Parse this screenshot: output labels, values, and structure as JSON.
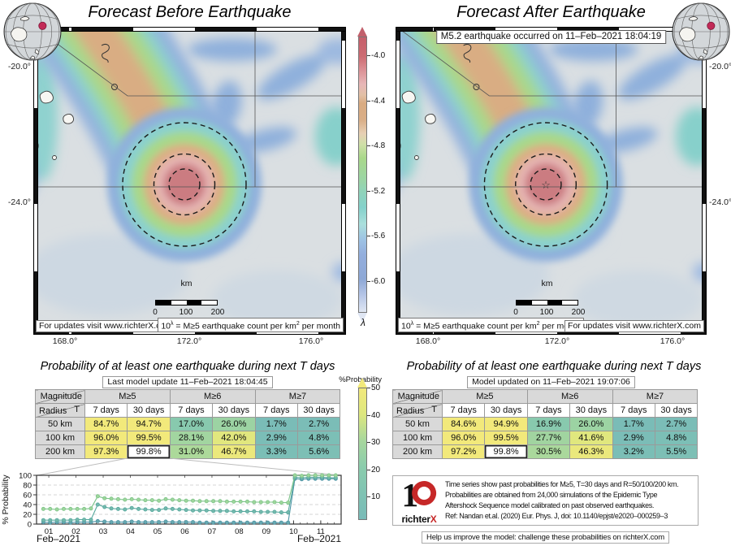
{
  "maps": {
    "left": {
      "title": "Forecast Before Earthquake",
      "lat_labels": [
        "-20.0°",
        "-24.0°"
      ],
      "lon_labels": [
        "168.0°",
        "172.0°",
        "176.0°"
      ]
    },
    "right": {
      "title": "Forecast After Earthquake",
      "banner": "M5.2 earthquake occurred on 11–Feb–2021 18:04:19",
      "lat_labels": [
        "-20.0°",
        "-24.0°"
      ],
      "lon_labels": [
        "168.0°",
        "172.0°",
        "176.0°"
      ],
      "epicenter_star": "☆"
    }
  },
  "shared": {
    "updates_box": "For updates visit www.richterX.com",
    "count_box": {
      "prefix": "10",
      "sup1": "λ",
      "mid": " = M≥5 earthquake count per km",
      "sup2": "2",
      "suffix": " per month"
    },
    "scalebar": {
      "label": "km",
      "ticks": [
        "0",
        "100",
        "200"
      ]
    }
  },
  "colorbar_lambda": {
    "ticks": [
      "-4.0",
      "-4.4",
      "-4.8",
      "-5.2",
      "-5.6",
      "-6.0"
    ],
    "label": "λ"
  },
  "colorbar_prob": {
    "title": "%Probability",
    "ticks": [
      "50",
      "40",
      "30",
      "20",
      "10"
    ]
  },
  "prob_colormap": [
    [
      0,
      "#79bbb8"
    ],
    [
      10,
      "#80c3b3"
    ],
    [
      20,
      "#8bccac"
    ],
    [
      30,
      "#a7d79d"
    ],
    [
      40,
      "#dde77f"
    ],
    [
      50,
      "#f2e97b"
    ]
  ],
  "prob_title": "Probability of at least one earthquake during next T days",
  "chart_data": [
    {
      "type": "line",
      "title": "Past probability time series",
      "ylabel": "% Probability",
      "xlabel_left": "Feb–2021",
      "xlabel_right": "Feb–2021",
      "ylim": [
        0,
        100
      ],
      "yticks": [
        0,
        20,
        40,
        60,
        80,
        100
      ],
      "xticks": [
        "01",
        "02",
        "03",
        "04",
        "05",
        "06",
        "07",
        "08",
        "09",
        "10",
        "11"
      ],
      "x_start": 0.8,
      "x_step": 0.25,
      "grid": true,
      "series": [
        {
          "name": "R=200 km",
          "color": "#9fd69b",
          "stroke": "#7dc48a",
          "values": [
            31,
            31,
            30,
            31,
            31,
            31,
            31,
            32,
            57,
            53,
            52,
            51,
            50,
            51,
            50,
            49,
            49,
            48,
            51,
            50,
            49,
            48,
            48,
            47,
            47,
            47,
            47,
            46,
            46,
            46,
            46,
            45,
            45,
            45,
            45,
            44,
            44,
            100,
            99,
            100,
            100,
            100,
            100,
            100
          ]
        },
        {
          "name": "R=100 km",
          "color": "#74b9ad",
          "stroke": "#56a89d",
          "values": [
            8,
            8,
            8,
            8,
            8,
            9,
            9,
            9,
            40,
            35,
            32,
            31,
            30,
            33,
            31,
            30,
            29,
            29,
            32,
            31,
            30,
            29,
            28,
            28,
            28,
            27,
            27,
            27,
            26,
            26,
            26,
            26,
            25,
            25,
            25,
            24,
            24,
            96,
            95,
            96,
            96,
            96,
            95,
            95
          ]
        },
        {
          "name": "R=50 km",
          "color": "#68a9b0",
          "stroke": "#4b93a4",
          "values": [
            4,
            3,
            4,
            4,
            3,
            4,
            4,
            4,
            6,
            5,
            4,
            4,
            4,
            5,
            4,
            4,
            4,
            4,
            5,
            4,
            4,
            4,
            4,
            3,
            3,
            3,
            3,
            3,
            3,
            3,
            3,
            3,
            3,
            3,
            3,
            3,
            3,
            93,
            92,
            93,
            93,
            93,
            93,
            93
          ]
        }
      ]
    },
    {
      "type": "table",
      "name": "before",
      "subtitle": "Last model update 11–Feb–2021 18:04:45",
      "corner": {
        "magnitude": "Magnitude",
        "radius": "Radius",
        "t": "T"
      },
      "mag_headers": [
        "M≥5",
        "M≥6",
        "M≥7"
      ],
      "day_headers": [
        "7 days",
        "30 days"
      ],
      "rows": [
        {
          "radius": "50 km",
          "values": [
            "84.7%",
            "94.7%",
            "17.0%",
            "26.0%",
            "1.7%",
            "2.7%"
          ]
        },
        {
          "radius": "100 km",
          "values": [
            "96.0%",
            "99.5%",
            "28.1%",
            "42.0%",
            "2.9%",
            "4.8%"
          ]
        },
        {
          "radius": "200 km",
          "values": [
            "97.3%",
            "99.8%",
            "31.0%",
            "46.7%",
            "3.3%",
            "5.6%"
          ]
        }
      ],
      "highlight": [
        2,
        1
      ]
    },
    {
      "type": "table",
      "name": "after",
      "subtitle": "Model updated on 11–Feb–2021 19:07:06",
      "corner": {
        "magnitude": "Magnitude",
        "radius": "Radius",
        "t": "T"
      },
      "mag_headers": [
        "M≥5",
        "M≥6",
        "M≥7"
      ],
      "day_headers": [
        "7 days",
        "30 days"
      ],
      "rows": [
        {
          "radius": "50 km",
          "values": [
            "84.6%",
            "94.9%",
            "16.9%",
            "26.0%",
            "1.7%",
            "2.7%"
          ]
        },
        {
          "radius": "100 km",
          "values": [
            "96.0%",
            "99.5%",
            "27.7%",
            "41.6%",
            "2.9%",
            "4.8%"
          ]
        },
        {
          "radius": "200 km",
          "values": [
            "97.2%",
            "99.8%",
            "30.5%",
            "46.3%",
            "3.2%",
            "5.5%"
          ]
        }
      ],
      "highlight": [
        2,
        1
      ]
    }
  ],
  "note": {
    "logo": {
      "one": "1",
      "zero": "0",
      "brand_black": "richter",
      "brand_red": "X"
    },
    "lines": [
      "Time series show past probabilities for M≥5, T=30 days and R=50/100/200 km.",
      "Probabilities are obtained from 24,000 simulations of the Epidemic Type",
      "Aftershock Sequence model calibrated on past observed earthquakes.",
      "Ref: Nandan et.al. (2020) Eur. Phys. J, doi: 10.1140/epjst/e2020–000259–3"
    ]
  },
  "help_text": "Help us improve the model: challenge these probabilities on richterX.com"
}
